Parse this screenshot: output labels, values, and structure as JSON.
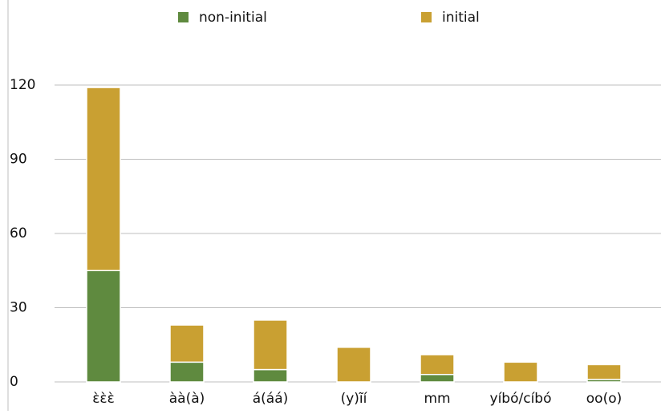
{
  "chart_data": {
    "type": "stacked-bar",
    "categories": [
      "ɛ̀ɛ̀ɛ̀",
      "àà(à)",
      "á(áá)",
      "(y)ĩí",
      "mm",
      "yíbó/cíbó",
      "oo(o)"
    ],
    "series": [
      {
        "name": "non-initial",
        "color": "#5f8a3f",
        "values": [
          45,
          8,
          5,
          0,
          3,
          0,
          1
        ]
      },
      {
        "name": "initial",
        "color": "#c9a032",
        "values": [
          74,
          15,
          20,
          14,
          8,
          8,
          6
        ]
      }
    ],
    "ylim": [
      0,
      120
    ],
    "yticks": [
      0,
      30,
      60,
      90,
      120
    ],
    "grid": true,
    "legend": "top"
  }
}
